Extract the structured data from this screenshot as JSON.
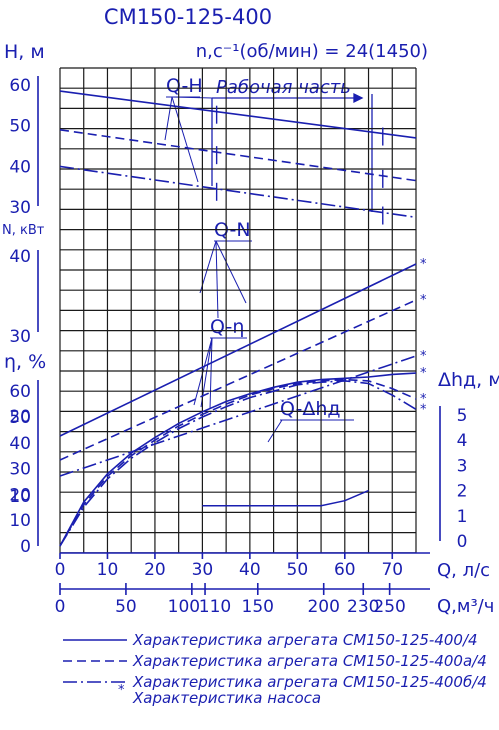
{
  "chart_data": {
    "type": "line",
    "title": "СМ150-125-400",
    "subtitle": "n,c⁻¹(об/мин) = 24(1450)",
    "xlabel": "Q, л/с",
    "xlabel2": "Q,м³/ч",
    "xlim": [
      0,
      75
    ],
    "x_ticks": [
      "0",
      "10",
      "20",
      "30",
      "40",
      "50",
      "60",
      "70"
    ],
    "x2_ticks": [
      "0",
      "50",
      "100",
      "110",
      "150",
      "200",
      "230",
      "250"
    ],
    "panels": {
      "head": {
        "ylabel": "H, м",
        "ylim": [
          30,
          60
        ],
        "ticks": [
          "60",
          "50",
          "40",
          "30"
        ]
      },
      "power": {
        "ylabel": "N, кВт",
        "ylim": [
          10,
          40
        ],
        "ticks": [
          "40",
          "30",
          "20",
          "10"
        ]
      },
      "efficiency": {
        "ylabel": "η, %",
        "ylim": [
          0,
          60
        ],
        "ticks": [
          "60",
          "50",
          "40",
          "30",
          "20",
          "10",
          "0"
        ]
      },
      "npsh": {
        "ylabel": "Δhд, м",
        "ylim": [
          0,
          5
        ],
        "ticks": [
          "5",
          "4",
          "3",
          "2",
          "1",
          "0"
        ]
      }
    },
    "labels": {
      "q_h": "Q-H",
      "q_n": "Q-N",
      "q_eta": "Q-η",
      "q_dh": "Q-Δhд",
      "work_zone": "Рабочая часть"
    },
    "series": [
      {
        "name": "Характеристика агрегата СМ150-125-400/4",
        "head": {
          "x": [
            0,
            75
          ],
          "y": [
            58.5,
            47
          ]
        },
        "power": {
          "x": [
            0,
            75
          ],
          "y": [
            17.5,
            39
          ]
        },
        "efficiency": {
          "x": [
            0,
            5,
            10,
            15,
            20,
            25,
            30,
            35,
            40,
            45,
            50,
            55,
            60,
            65,
            70,
            75
          ],
          "y": [
            0,
            17,
            28,
            36,
            42,
            47.5,
            52,
            56,
            59,
            61.5,
            63.5,
            64.5,
            65,
            65.5,
            66.5,
            67
          ]
        }
      },
      {
        "name": "Характеристика агрегата СМ150-125-400а/4",
        "head": {
          "x": [
            0,
            75
          ],
          "y": [
            49,
            36.5
          ]
        },
        "power": {
          "x": [
            0,
            75
          ],
          "y": [
            14.5,
            34.5
          ]
        },
        "efficiency": {
          "x": [
            0,
            5,
            10,
            15,
            20,
            25,
            30,
            35,
            40,
            45,
            50,
            55,
            60,
            65,
            70,
            75
          ],
          "y": [
            0,
            16,
            27,
            35,
            41,
            46.5,
            51,
            55,
            58.5,
            61,
            63,
            64,
            64.5,
            64,
            61,
            57
          ]
        }
      },
      {
        "name": "Характеристика агрегата СМ150-125-400б/4",
        "head": {
          "x": [
            0,
            75
          ],
          "y": [
            40,
            27.5
          ]
        },
        "power": {
          "x": [
            0,
            75
          ],
          "y": [
            12.5,
            27.5
          ]
        },
        "efficiency": {
          "x": [
            0,
            5,
            10,
            15,
            20,
            25,
            30,
            35,
            40,
            45,
            50,
            55,
            60,
            65,
            70,
            75
          ],
          "y": [
            0,
            15,
            26,
            34,
            40,
            45.5,
            50,
            54,
            57.5,
            60,
            62.5,
            63.5,
            64,
            63,
            58.5,
            53
          ]
        }
      },
      {
        "name": "Характеристика насоса"
      }
    ],
    "npsh": {
      "x": [
        30,
        40,
        50,
        55,
        60,
        65
      ],
      "y": [
        1.4,
        1.4,
        1.4,
        1.4,
        1.6,
        2.0
      ]
    },
    "work_range_x": [
      33,
      68
    ]
  }
}
